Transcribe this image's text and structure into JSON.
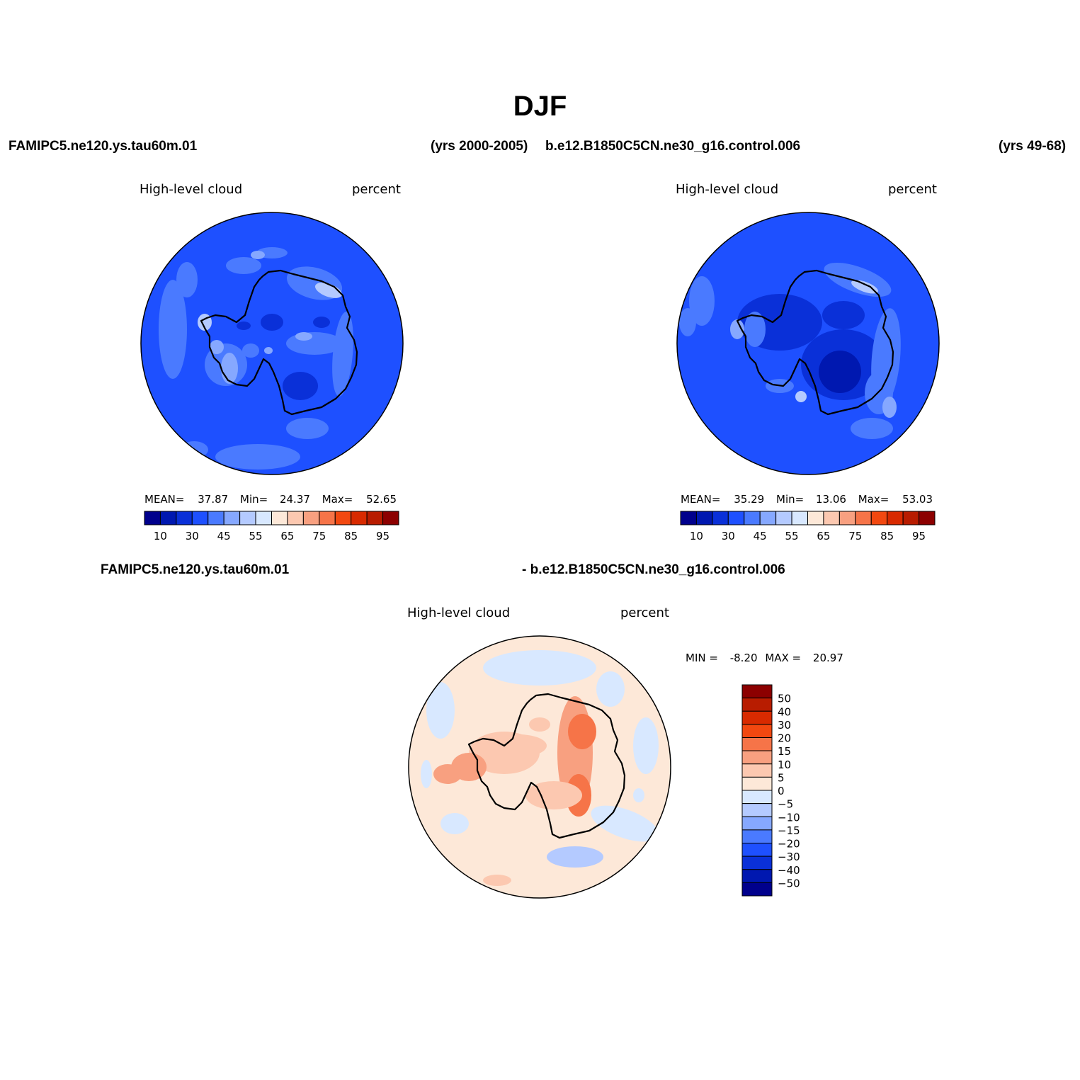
{
  "title": "DJF",
  "header": {
    "left_case": "FAMIPC5.ne120.ys.tau60m.01",
    "left_years": "(yrs 2000-2005)",
    "right_case": "b.e12.B1850C5CN.ne30_g16.control.006",
    "right_years": "(yrs 49-68)"
  },
  "diff_header": {
    "left": "FAMIPC5.ne120.ys.tau60m.01",
    "right": "- b.e12.B1850C5CN.ne30_g16.control.006"
  },
  "colors": {
    "abs_scale": [
      "#00008c",
      "#0018b0",
      "#0a30d8",
      "#1e50ff",
      "#4a7aff",
      "#86a8ff",
      "#b4caff",
      "#d8e8ff",
      "#fde8d8",
      "#fcc8b0",
      "#f8a080",
      "#f67448",
      "#f24810",
      "#d82a00",
      "#b81c00",
      "#8c0000"
    ],
    "diff_scale": [
      "#00008c",
      "#0018b0",
      "#0a30d8",
      "#1e50ff",
      "#4a7aff",
      "#86a8ff",
      "#b4caff",
      "#d8e8ff",
      "#fde8d8",
      "#fcc8b0",
      "#f8a080",
      "#f67448",
      "#f24810",
      "#d82a00",
      "#b81c00",
      "#8c0000"
    ]
  },
  "chart_data": [
    {
      "type": "heatmap",
      "projection": "south-polar-stereographic",
      "variable": "High-level cloud",
      "units": "percent",
      "case": "FAMIPC5.ne120.ys.tau60m.01",
      "years": "(yrs 2000-2005)",
      "stats": {
        "mean_label": "MEAN=",
        "mean": "37.87",
        "min_label": "Min=",
        "min": "24.37",
        "max_label": "Max=",
        "max": "52.65"
      },
      "colorbar_ticks": [
        "10",
        "30",
        "45",
        "55",
        "65",
        "75",
        "85",
        "95"
      ],
      "dominant_range": [
        35,
        40
      ]
    },
    {
      "type": "heatmap",
      "projection": "south-polar-stereographic",
      "variable": "High-level cloud",
      "units": "percent",
      "case": "b.e12.B1850C5CN.ne30_g16.control.006",
      "years": "(yrs 49-68)",
      "stats": {
        "mean_label": "MEAN=",
        "mean": "35.29",
        "min_label": "Min=",
        "min": "13.06",
        "max_label": "Max=",
        "max": "53.03"
      },
      "colorbar_ticks": [
        "10",
        "30",
        "45",
        "55",
        "65",
        "75",
        "85",
        "95"
      ],
      "dominant_range": [
        35,
        40
      ]
    },
    {
      "type": "heatmap",
      "projection": "south-polar-stereographic",
      "variable": "High-level cloud",
      "units": "percent",
      "stats": {
        "min_label": "MIN =",
        "min": "-8.20",
        "max_label": "MAX =",
        "max": "20.97"
      },
      "colorbar_ticks": [
        "50",
        "40",
        "30",
        "20",
        "15",
        "10",
        "5",
        "0",
        "-5",
        "-10",
        "-15",
        "-20",
        "-30",
        "-40",
        "-50"
      ],
      "dominant_range": [
        0,
        5
      ]
    }
  ]
}
